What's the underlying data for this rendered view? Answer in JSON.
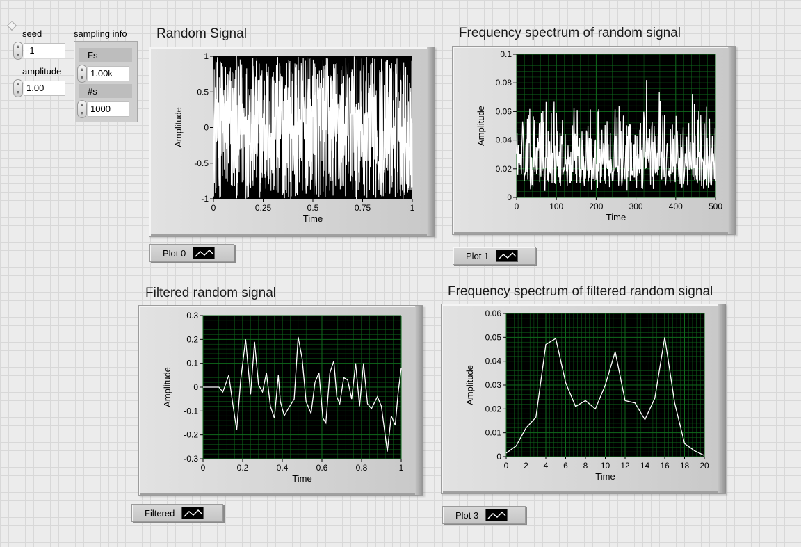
{
  "controls": {
    "seed": {
      "label": "seed",
      "value": "-1"
    },
    "amplitude": {
      "label": "amplitude",
      "value": "1.00"
    },
    "sampling_info": {
      "label": "sampling info",
      "fs": {
        "label": "Fs",
        "value": "1.00k"
      },
      "ns": {
        "label": "#s",
        "value": "1000"
      }
    }
  },
  "chart_data": [
    {
      "type": "line",
      "title": "Random Signal",
      "xlabel": "Time",
      "ylabel": "Amplitude",
      "xlim": [
        0,
        1
      ],
      "ylim": [
        -1,
        1
      ],
      "xticks": [
        "0",
        "0.25",
        "0.5",
        "0.75",
        "1"
      ],
      "yticks": [
        "1",
        "0.5",
        "0",
        "-0.5",
        "-1"
      ],
      "plot_bg": "#000000",
      "grid": false,
      "legend": "Plot 0",
      "series": [
        {
          "name": "Plot 0",
          "color": "#ffffff",
          "generator": "uniform_noise",
          "n": 1000,
          "amplitude": 1.0
        }
      ]
    },
    {
      "type": "line",
      "title": "Frequency spectrum of random signal",
      "xlabel": "Time",
      "ylabel": "Amplitude",
      "xlim": [
        0,
        500
      ],
      "ylim": [
        0,
        0.1
      ],
      "xticks": [
        "0",
        "100",
        "200",
        "300",
        "400",
        "500"
      ],
      "yticks": [
        "0.1",
        "0.08",
        "0.06",
        "0.04",
        "0.02",
        "0"
      ],
      "plot_bg": "#000000",
      "grid": true,
      "grid_color": "#0f6a1c",
      "legend": "Plot 1",
      "series": [
        {
          "name": "Plot 1",
          "color": "#ffffff",
          "generator": "spectrum_noise",
          "n": 500,
          "mean": 0.028
        }
      ]
    },
    {
      "type": "line",
      "title": "Filtered random signal",
      "xlabel": "Time",
      "ylabel": "Amplitude",
      "xlim": [
        0,
        1
      ],
      "ylim": [
        -0.3,
        0.3
      ],
      "xticks": [
        "0",
        "0.2",
        "0.4",
        "0.6",
        "0.8",
        "1"
      ],
      "yticks": [
        "0.3",
        "0.2",
        "0.1",
        "0",
        "-0.1",
        "-0.2",
        "-0.3"
      ],
      "plot_bg": "#000000",
      "grid": true,
      "grid_color": "#0f6a1c",
      "legend": "Filtered",
      "series": [
        {
          "name": "Filtered",
          "color": "#ffffff",
          "x": [
            0,
            0.08,
            0.1,
            0.13,
            0.15,
            0.17,
            0.19,
            0.215,
            0.24,
            0.26,
            0.28,
            0.3,
            0.32,
            0.34,
            0.36,
            0.38,
            0.39,
            0.41,
            0.43,
            0.46,
            0.48,
            0.5,
            0.52,
            0.545,
            0.565,
            0.585,
            0.605,
            0.62,
            0.64,
            0.66,
            0.675,
            0.69,
            0.71,
            0.73,
            0.75,
            0.77,
            0.79,
            0.81,
            0.83,
            0.85,
            0.88,
            0.9,
            0.93,
            0.95,
            0.97,
            0.985,
            1
          ],
          "y": [
            0,
            0,
            -0.02,
            0.05,
            -0.07,
            -0.18,
            0.03,
            0.2,
            -0.03,
            0.19,
            0.01,
            -0.02,
            0.06,
            -0.08,
            -0.13,
            0.05,
            -0.06,
            -0.12,
            -0.09,
            -0.05,
            0.21,
            0.12,
            -0.06,
            -0.11,
            0.02,
            0.06,
            -0.13,
            -0.15,
            0.06,
            0.11,
            -0.04,
            -0.07,
            0.04,
            0.03,
            -0.05,
            0.1,
            -0.08,
            0.1,
            -0.07,
            -0.09,
            -0.04,
            -0.08,
            -0.27,
            -0.12,
            -0.16,
            -0.02,
            0.08
          ]
        }
      ]
    },
    {
      "type": "line",
      "title": "Frequency spectrum of filtered random signal",
      "xlabel": "Time",
      "ylabel": "Amplitude",
      "xlim": [
        0,
        20
      ],
      "ylim": [
        0,
        0.06
      ],
      "xticks": [
        "0",
        "2",
        "4",
        "6",
        "8",
        "10",
        "12",
        "14",
        "16",
        "18",
        "20"
      ],
      "yticks": [
        "0.06",
        "0.05",
        "0.04",
        "0.03",
        "0.02",
        "0.01",
        "0"
      ],
      "plot_bg": "#000000",
      "grid": true,
      "grid_color": "#0f6a1c",
      "legend": "Plot 3",
      "series": [
        {
          "name": "Plot 3",
          "color": "#ffffff",
          "x": [
            0,
            1,
            2,
            3,
            4,
            5,
            6,
            7,
            8,
            9,
            10,
            11,
            12,
            13,
            14,
            15,
            16,
            17,
            18,
            19,
            20
          ],
          "y": [
            0.0015,
            0.0045,
            0.012,
            0.0165,
            0.047,
            0.0495,
            0.031,
            0.021,
            0.0235,
            0.02,
            0.03,
            0.044,
            0.0235,
            0.0225,
            0.0155,
            0.0245,
            0.05,
            0.0225,
            0.0055,
            0.0025,
            0.0005
          ]
        }
      ]
    }
  ]
}
